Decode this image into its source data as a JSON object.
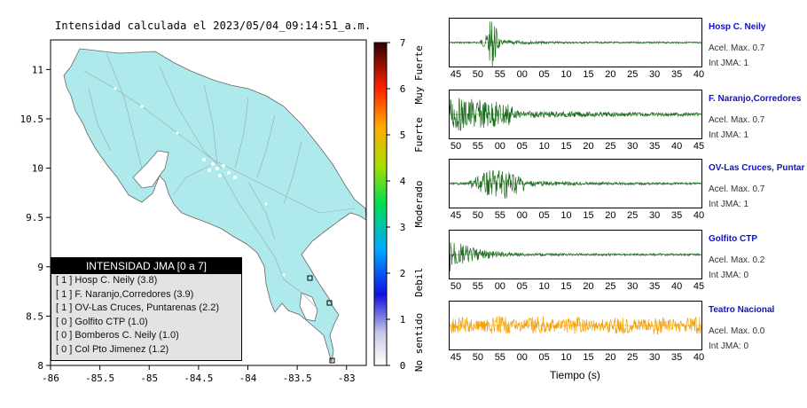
{
  "map": {
    "title": "Intensidad calculada el 2023/05/04_09:14:51_a.m.",
    "lon_ticks": [
      "-86",
      "-85.5",
      "-85",
      "-84.5",
      "-84",
      "-83.5",
      "-83"
    ],
    "lat_ticks": [
      "11",
      "10.5",
      "10",
      "9.5",
      "9",
      "8.5",
      "8"
    ],
    "lon_range": [
      -86,
      -82.8
    ],
    "lat_range": [
      8,
      11.3
    ],
    "land_color": "#aee9ec"
  },
  "legend": {
    "title": "INTENSIDAD JMA [0 a 7]",
    "rows": [
      "[ 1 ]  Hosp C. Neily (3.8)",
      "[ 1 ]  F. Naranjo,Corredores (3.9)",
      "[ 1 ]  OV-Las Cruces, Puntarenas (2.2)",
      "[ 0 ]  Golfito CTP (1.0)",
      "[ 0 ]  Bomberos C. Neily (1.0)",
      "[ 0 ]  Col Pto Jimenez (1.2)"
    ]
  },
  "colorbar": {
    "ticks": [
      "0",
      "1",
      "2",
      "3",
      "4",
      "5",
      "6",
      "7"
    ],
    "categories": [
      "No sentido",
      "Debil",
      "Moderado",
      "Fuerte",
      "Muy Fuerte"
    ],
    "range": [
      0,
      7
    ]
  },
  "traces": {
    "xlabel": "Tiempo (s)",
    "stations": [
      {
        "name": "Hosp C. Neily",
        "accel": "Acel. Max. 0.7",
        "jma": "Int JMA: 1",
        "color": "#1a6b1a",
        "ticks": [
          "45",
          "50",
          "55",
          "00",
          "05",
          "10",
          "15",
          "20",
          "25",
          "30",
          "35",
          "40"
        ]
      },
      {
        "name": "F. Naranjo,Corredores",
        "accel": "Acel. Max. 0.7",
        "jma": "Int JMA: 1",
        "color": "#1a6b1a",
        "ticks": [
          "50",
          "55",
          "00",
          "05",
          "10",
          "15",
          "20",
          "25",
          "30",
          "35",
          "40",
          "45"
        ]
      },
      {
        "name": "OV-Las Cruces, Puntar",
        "accel": "Acel. Max. 0.7",
        "jma": "Int JMA: 1",
        "color": "#1a6b1a",
        "ticks": [
          "45",
          "50",
          "55",
          "00",
          "05",
          "10",
          "15",
          "20",
          "25",
          "30",
          "35",
          "40"
        ]
      },
      {
        "name": "Golfito CTP",
        "accel": "Acel. Max. 0.2",
        "jma": "Int JMA: 0",
        "color": "#1a6b1a",
        "ticks": [
          "50",
          "55",
          "00",
          "05",
          "10",
          "15",
          "20",
          "25",
          "30",
          "35",
          "40",
          "45"
        ]
      },
      {
        "name": "Teatro Nacional",
        "accel": "Acel. Max. 0.0",
        "jma": "Int JMA: 0",
        "color": "#f5a000",
        "ticks": [
          "45",
          "50",
          "55",
          "00",
          "05",
          "10",
          "15",
          "20",
          "25",
          "30",
          "35",
          "40"
        ]
      }
    ]
  }
}
